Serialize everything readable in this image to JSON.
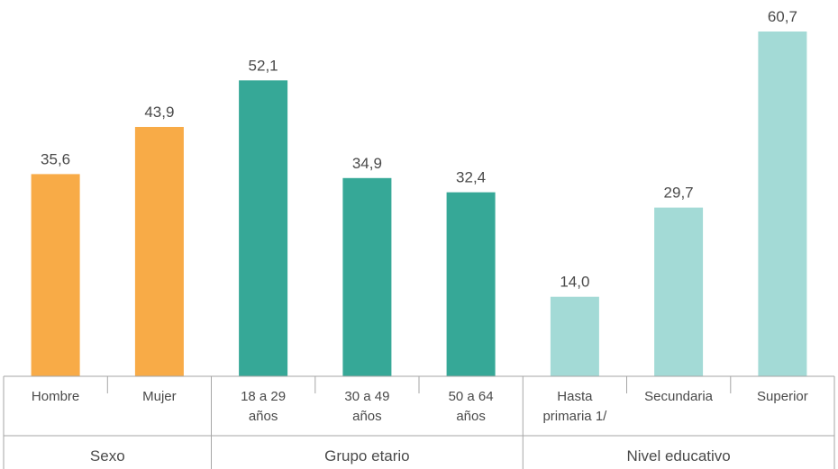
{
  "chart_data": {
    "type": "bar",
    "categories": [
      [
        "Hombre"
      ],
      [
        "Mujer"
      ],
      [
        "18 a 29",
        "años"
      ],
      [
        "30 a 49",
        "años"
      ],
      [
        "50 a 64",
        "años"
      ],
      [
        "Hasta",
        "primaria 1/"
      ],
      [
        "Secundaria"
      ],
      [
        "Superior"
      ]
    ],
    "values": [
      35.6,
      43.9,
      52.1,
      34.9,
      32.4,
      14.0,
      29.7,
      60.7
    ],
    "value_labels": [
      "35,6",
      "43,9",
      "52,1",
      "34,9",
      "32,4",
      "14,0",
      "29,7",
      "60,7"
    ],
    "groups": [
      {
        "label": "Sexo",
        "count": 2,
        "color": "#F8AB47"
      },
      {
        "label": "Grupo etario",
        "count": 3,
        "color": "#36A897"
      },
      {
        "label": "Nivel educativo",
        "count": 3,
        "color": "#A3DAD6"
      }
    ],
    "ylim": [
      0,
      63
    ],
    "grid": false,
    "legend": "none"
  }
}
